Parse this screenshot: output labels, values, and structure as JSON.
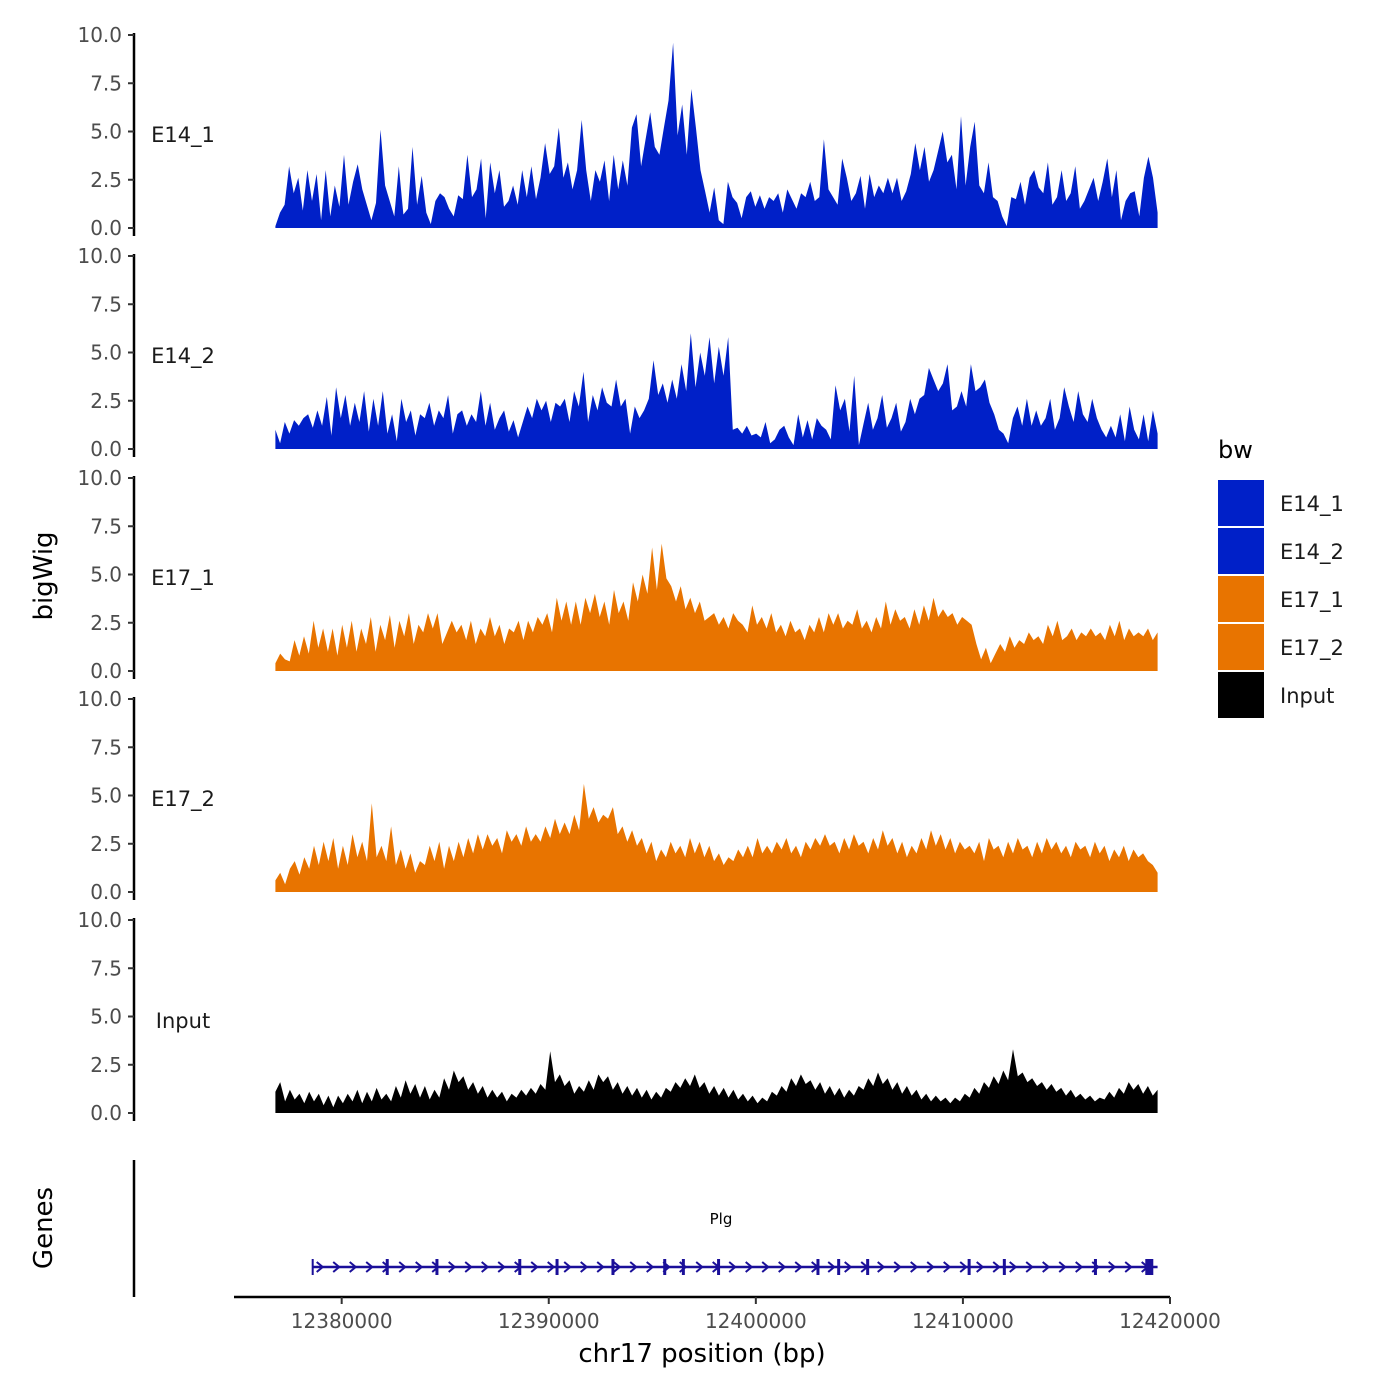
{
  "chart_data": {
    "type": "area",
    "y_axis_label": "bigWig",
    "x_axis_label": "chr17 position (bp)",
    "genes_axis_label": "Genes",
    "xlim": [
      12374800,
      12420000
    ],
    "data_range": [
      12376800,
      12419400
    ],
    "ylim": [
      0,
      10
    ],
    "y_ticks": [
      "0.0",
      "2.5",
      "5.0",
      "7.5",
      "10.0"
    ],
    "x_ticks": [
      {
        "value": 12380000,
        "label": "12380000"
      },
      {
        "value": 12390000,
        "label": "12390000"
      },
      {
        "value": 12400000,
        "label": "12400000"
      },
      {
        "value": 12410000,
        "label": "12410000"
      },
      {
        "value": 12420000,
        "label": "12420000"
      }
    ],
    "legend": {
      "title": "bw",
      "entries": [
        {
          "label": "E14_1",
          "color": "#0020c8"
        },
        {
          "label": "E14_2",
          "color": "#0020c8"
        },
        {
          "label": "E17_1",
          "color": "#e87400"
        },
        {
          "label": "E17_2",
          "color": "#e87400"
        },
        {
          "label": "Input",
          "color": "#000000"
        }
      ]
    },
    "series": [
      {
        "name": "E14_1",
        "color": "#0020c8",
        "values": [
          0.1,
          0.8,
          1.2,
          3.2,
          1.8,
          2.6,
          0.9,
          3.0,
          1.4,
          2.8,
          0.4,
          3.0,
          0.6,
          2.2,
          1.1,
          3.8,
          1.2,
          2.4,
          3.3,
          2.0,
          1.2,
          0.4,
          1.3,
          5.1,
          2.2,
          1.4,
          0.6,
          3.2,
          0.7,
          1.0,
          4.2,
          1.2,
          2.7,
          0.8,
          0.2,
          1.4,
          1.8,
          1.6,
          1.0,
          0.6,
          1.7,
          1.5,
          3.8,
          1.6,
          2.0,
          3.6,
          0.5,
          3.4,
          1.8,
          3.0,
          1.1,
          1.4,
          2.2,
          1.2,
          3.0,
          1.6,
          3.2,
          1.5,
          2.6,
          4.4,
          2.8,
          3.2,
          5.2,
          2.6,
          3.4,
          2.0,
          3.0,
          5.6,
          3.0,
          1.4,
          3.0,
          2.4,
          3.5,
          1.4,
          3.8,
          2.0,
          3.5,
          2.2,
          5.2,
          5.9,
          3.2,
          4.6,
          6.0,
          4.2,
          3.8,
          5.2,
          6.6,
          9.6,
          4.8,
          6.4,
          3.8,
          7.2,
          5.2,
          3.0,
          1.9,
          0.8,
          2.1,
          0.4,
          0.2,
          2.4,
          1.6,
          1.3,
          0.5,
          1.6,
          1.9,
          1.1,
          1.7,
          1.0,
          1.6,
          1.4,
          1.8,
          0.8,
          2.0,
          1.5,
          1.0,
          1.8,
          1.6,
          2.4,
          1.4,
          1.6,
          4.6,
          2.0,
          1.6,
          1.2,
          3.6,
          2.6,
          1.4,
          1.8,
          2.7,
          1.0,
          2.8,
          1.6,
          2.2,
          1.8,
          2.6,
          1.8,
          2.6,
          1.4,
          1.9,
          2.8,
          4.4,
          3.0,
          4.2,
          2.4,
          3.0,
          4.0,
          5.0,
          3.4,
          3.8,
          2.0,
          5.8,
          2.2,
          4.2,
          5.5,
          2.2,
          1.8,
          3.4,
          1.6,
          1.4,
          0.6,
          0.1,
          1.6,
          1.5,
          2.4,
          1.2,
          2.6,
          3.0,
          2.1,
          1.8,
          3.4,
          1.2,
          1.6,
          3.0,
          1.4,
          1.8,
          3.2,
          1.0,
          1.4,
          2.0,
          2.6,
          1.4,
          2.4,
          3.6,
          1.6,
          3.0,
          0.4,
          1.4,
          1.8,
          1.9,
          0.6,
          2.6,
          3.7,
          2.6,
          0.8
        ]
      },
      {
        "name": "E14_2",
        "color": "#0020c8",
        "values": [
          1.0,
          0.3,
          1.4,
          0.8,
          1.5,
          1.2,
          1.6,
          1.8,
          1.1,
          2.0,
          1.2,
          2.7,
          0.7,
          3.2,
          1.6,
          2.8,
          1.2,
          2.4,
          1.4,
          3.0,
          0.9,
          2.6,
          1.2,
          3.0,
          0.8,
          1.8,
          0.4,
          2.6,
          1.4,
          2.0,
          0.7,
          1.8,
          1.6,
          2.4,
          1.2,
          2.0,
          1.6,
          2.8,
          0.8,
          1.8,
          2.0,
          1.2,
          1.8,
          1.4,
          3.0,
          1.2,
          2.4,
          1.0,
          1.6,
          2.0,
          0.9,
          1.5,
          0.6,
          1.4,
          2.2,
          1.6,
          2.6,
          2.0,
          2.5,
          1.4,
          2.4,
          2.2,
          2.6,
          1.4,
          3.0,
          2.2,
          4.0,
          1.4,
          2.8,
          2.0,
          3.2,
          2.4,
          2.2,
          3.6,
          2.2,
          2.6,
          0.8,
          2.2,
          1.6,
          2.0,
          2.6,
          4.6,
          2.8,
          3.4,
          2.4,
          3.6,
          2.6,
          4.4,
          3.0,
          6.0,
          3.2,
          5.0,
          3.8,
          5.8,
          3.4,
          5.3,
          3.8,
          5.8,
          1.0,
          1.1,
          0.8,
          1.2,
          0.7,
          0.8,
          0.6,
          1.4,
          0.3,
          0.5,
          1.0,
          1.2,
          0.6,
          0.2,
          1.8,
          0.6,
          1.5,
          0.5,
          1.6,
          1.2,
          1.0,
          0.5,
          3.3,
          2.0,
          2.6,
          0.9,
          3.8,
          0.2,
          1.3,
          2.4,
          1.0,
          1.6,
          2.8,
          1.1,
          1.6,
          2.4,
          0.9,
          1.4,
          2.6,
          1.8,
          2.6,
          2.8,
          4.2,
          3.6,
          3.0,
          3.4,
          4.4,
          2.0,
          2.2,
          3.0,
          2.2,
          4.4,
          3.0,
          3.2,
          3.6,
          2.4,
          1.8,
          1.0,
          0.8,
          0.3,
          1.6,
          2.2,
          1.2,
          2.6,
          1.2,
          2.0,
          1.2,
          1.6,
          2.6,
          1.0,
          1.6,
          3.2,
          2.2,
          1.4,
          3.0,
          1.8,
          1.4,
          2.6,
          1.6,
          1.0,
          0.6,
          1.2,
          0.6,
          1.8,
          0.4,
          2.2,
          1.0,
          0.5,
          1.8,
          0.4,
          2.0,
          0.8
        ]
      },
      {
        "name": "E17_1",
        "color": "#e87400",
        "values": [
          0.4,
          0.9,
          0.6,
          0.5,
          1.6,
          0.8,
          1.8,
          0.9,
          2.6,
          1.2,
          2.2,
          1.0,
          2.2,
          0.8,
          2.4,
          1.2,
          2.6,
          1.0,
          2.2,
          1.4,
          2.8,
          1.0,
          2.4,
          1.6,
          2.9,
          1.2,
          2.6,
          1.8,
          3.0,
          1.4,
          2.4,
          2.0,
          3.0,
          2.2,
          3.0,
          1.4,
          2.0,
          2.6,
          2.0,
          2.4,
          1.6,
          2.6,
          1.4,
          2.2,
          1.8,
          2.8,
          1.8,
          2.4,
          1.4,
          2.2,
          2.0,
          2.6,
          1.6,
          2.6,
          2.0,
          2.8,
          2.4,
          3.0,
          2.0,
          3.8,
          2.6,
          3.6,
          2.4,
          3.6,
          2.4,
          3.8,
          3.0,
          4.0,
          2.8,
          3.6,
          2.4,
          4.2,
          3.0,
          3.6,
          2.6,
          4.6,
          3.6,
          5.0,
          4.0,
          6.4,
          4.2,
          6.6,
          4.8,
          4.4,
          3.6,
          4.4,
          3.2,
          3.8,
          3.0,
          3.6,
          2.6,
          2.8,
          3.0,
          2.4,
          2.8,
          2.2,
          3.0,
          2.6,
          2.4,
          2.0,
          3.4,
          2.4,
          2.8,
          2.2,
          3.0,
          2.0,
          2.4,
          1.8,
          2.6,
          2.0,
          2.2,
          1.6,
          2.4,
          2.0,
          2.8,
          2.0,
          3.0,
          2.4,
          3.0,
          2.2,
          2.6,
          2.4,
          3.2,
          2.2,
          2.6,
          2.0,
          2.8,
          2.2,
          3.6,
          2.4,
          3.2,
          2.6,
          2.8,
          2.2,
          3.2,
          2.4,
          3.4,
          2.6,
          3.8,
          2.8,
          3.2,
          2.8,
          3.0,
          2.4,
          2.8,
          2.6,
          2.4,
          1.4,
          0.6,
          1.2,
          0.4,
          0.9,
          1.4,
          1.0,
          1.8,
          1.2,
          1.6,
          1.4,
          2.0,
          1.6,
          1.8,
          1.4,
          2.4,
          1.8,
          2.6,
          1.6,
          1.8,
          2.2,
          1.6,
          2.0,
          1.8,
          2.2,
          1.8,
          2.0,
          1.6,
          2.4,
          1.8,
          2.6,
          1.6,
          2.2,
          1.8,
          2.0,
          1.8,
          2.2,
          1.6,
          2.0
        ]
      },
      {
        "name": "E17_2",
        "color": "#e87400",
        "values": [
          0.6,
          1.0,
          0.4,
          1.2,
          1.6,
          0.9,
          1.8,
          1.2,
          2.4,
          1.4,
          2.6,
          1.6,
          2.8,
          1.2,
          2.4,
          1.4,
          3.0,
          1.8,
          2.6,
          1.6,
          4.6,
          1.8,
          2.4,
          1.6,
          3.4,
          1.4,
          2.2,
          1.2,
          2.0,
          1.0,
          1.6,
          1.4,
          2.4,
          1.6,
          2.6,
          1.2,
          2.4,
          1.6,
          2.6,
          1.8,
          2.8,
          2.0,
          3.0,
          2.2,
          3.0,
          2.4,
          2.8,
          2.0,
          3.2,
          2.6,
          3.0,
          2.4,
          3.4,
          2.6,
          3.0,
          2.6,
          3.4,
          2.8,
          3.8,
          3.0,
          3.6,
          3.0,
          4.0,
          3.2,
          5.6,
          3.8,
          4.4,
          3.6,
          4.0,
          3.8,
          4.4,
          3.0,
          3.4,
          2.6,
          3.2,
          2.4,
          2.8,
          2.0,
          2.6,
          1.6,
          2.2,
          1.8,
          2.6,
          2.0,
          2.4,
          1.8,
          2.8,
          2.0,
          2.6,
          1.8,
          2.4,
          1.6,
          2.0,
          1.4,
          1.8,
          1.6,
          2.2,
          1.8,
          2.4,
          1.8,
          2.8,
          2.0,
          2.4,
          2.0,
          2.6,
          2.2,
          2.8,
          2.0,
          2.4,
          1.8,
          2.6,
          2.2,
          2.8,
          2.4,
          3.0,
          2.4,
          2.6,
          2.0,
          2.8,
          2.2,
          3.0,
          2.4,
          2.6,
          2.0,
          2.8,
          2.2,
          3.2,
          2.4,
          2.8,
          2.0,
          2.6,
          1.8,
          2.4,
          2.0,
          2.8,
          2.2,
          3.2,
          2.4,
          3.0,
          2.2,
          2.8,
          2.0,
          2.6,
          2.2,
          2.4,
          2.0,
          2.6,
          1.6,
          2.8,
          2.2,
          2.4,
          1.8,
          2.6,
          2.0,
          2.8,
          2.2,
          2.4,
          1.8,
          2.6,
          2.0,
          2.8,
          2.2,
          2.6,
          2.0,
          2.4,
          1.8,
          2.6,
          2.2,
          2.4,
          1.8,
          2.6,
          2.0,
          2.4,
          1.6,
          2.2,
          1.8,
          2.4,
          1.6,
          2.2,
          1.8,
          2.0,
          1.6,
          1.4,
          1.0
        ]
      },
      {
        "name": "Input",
        "color": "#000000",
        "values": [
          1.1,
          1.6,
          0.6,
          1.2,
          0.7,
          1.0,
          0.5,
          1.1,
          0.6,
          1.0,
          0.4,
          0.9,
          0.3,
          0.9,
          0.5,
          1.0,
          0.6,
          1.2,
          0.5,
          1.1,
          0.6,
          1.3,
          0.7,
          1.0,
          0.6,
          1.4,
          0.8,
          1.7,
          1.0,
          1.5,
          0.8,
          1.4,
          0.7,
          1.2,
          0.8,
          1.8,
          1.2,
          2.2,
          1.6,
          1.9,
          1.2,
          1.6,
          1.0,
          1.4,
          0.8,
          1.2,
          0.8,
          1.1,
          0.6,
          1.0,
          0.8,
          1.2,
          0.9,
          1.3,
          1.0,
          1.5,
          1.2,
          3.2,
          1.6,
          2.0,
          1.4,
          1.7,
          1.0,
          1.4,
          1.1,
          1.7,
          1.2,
          2.0,
          1.6,
          1.9,
          1.2,
          1.6,
          1.0,
          1.4,
          0.9,
          1.3,
          0.8,
          1.2,
          0.7,
          1.1,
          0.8,
          1.3,
          1.1,
          1.6,
          1.3,
          1.8,
          1.4,
          2.0,
          1.3,
          1.6,
          1.0,
          1.4,
          0.9,
          1.3,
          0.8,
          1.2,
          0.7,
          1.0,
          0.6,
          0.9,
          0.5,
          0.8,
          0.6,
          1.1,
          0.9,
          1.4,
          1.1,
          1.8,
          1.4,
          2.0,
          1.5,
          1.7,
          1.2,
          1.6,
          1.0,
          1.4,
          0.9,
          1.3,
          0.8,
          1.2,
          0.9,
          1.4,
          1.2,
          1.8,
          1.4,
          2.1,
          1.5,
          1.8,
          1.2,
          1.6,
          1.0,
          1.4,
          0.9,
          1.2,
          0.7,
          1.0,
          0.6,
          0.9,
          0.6,
          0.8,
          0.5,
          0.8,
          0.6,
          1.0,
          0.8,
          1.3,
          1.0,
          1.6,
          1.3,
          1.9,
          1.5,
          2.2,
          1.7,
          3.3,
          1.9,
          2.1,
          1.6,
          1.8,
          1.4,
          1.6,
          1.2,
          1.5,
          1.1,
          1.3,
          0.9,
          1.2,
          0.8,
          1.0,
          0.7,
          0.9,
          0.6,
          0.8,
          0.7,
          1.1,
          0.8,
          1.3,
          1.0,
          1.6,
          1.2,
          1.5,
          1.0,
          1.4,
          0.9,
          1.2
        ]
      }
    ],
    "gene": {
      "name": "Plg",
      "start": 12378600,
      "end": 12419400,
      "strand": "+",
      "color": "#1a0f99",
      "exons": [
        12382200,
        12384600,
        12388600,
        12390400,
        12393100,
        12395600,
        12396500,
        12398200,
        12403000,
        12404000,
        12405400,
        12410300,
        12412000,
        12416400,
        12419000
      ]
    }
  }
}
